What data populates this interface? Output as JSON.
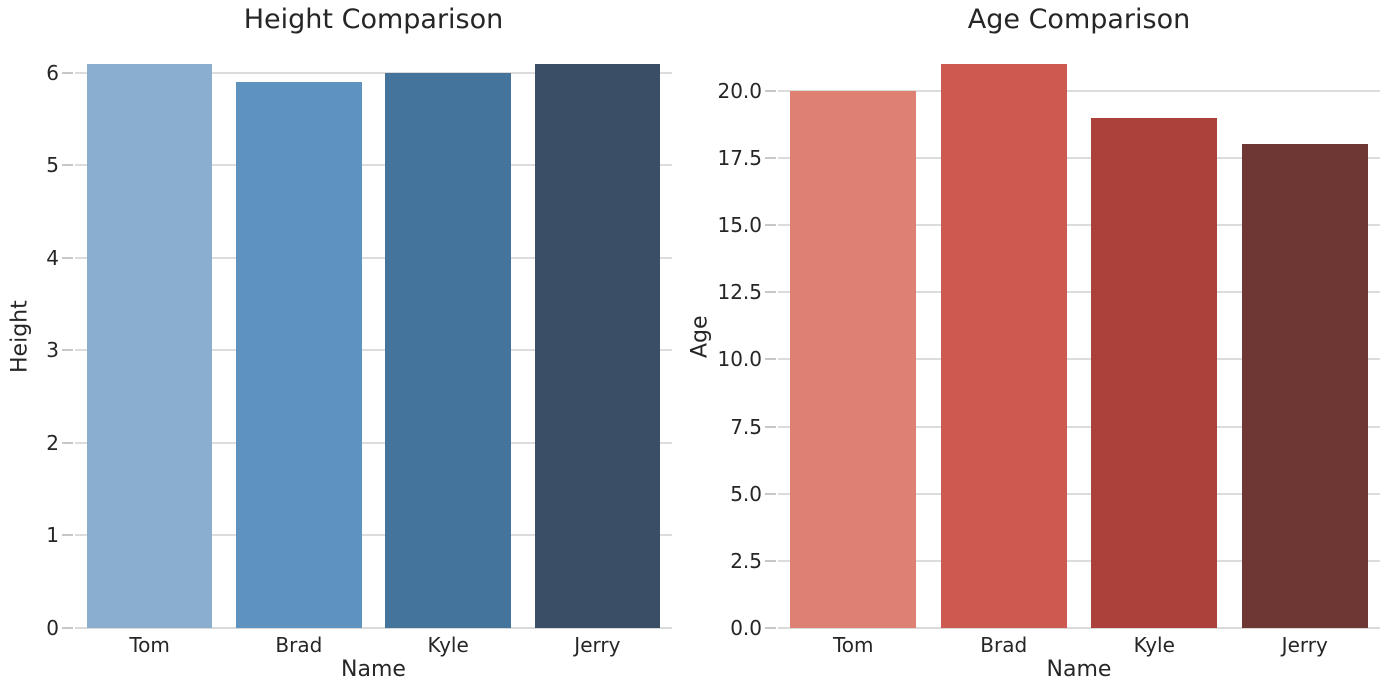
{
  "figure": {
    "background_color": "#ffffff",
    "text_color": "#262626",
    "grid_color": "#dcdcdc",
    "tick_mark_color": "#c8c8c8"
  },
  "chart_data": [
    {
      "type": "bar",
      "title": "Height Comparison",
      "xlabel": "Name",
      "ylabel": "Height",
      "categories": [
        "Tom",
        "Brad",
        "Kyle",
        "Jerry"
      ],
      "values": [
        6.1,
        5.9,
        6.0,
        6.1
      ],
      "bar_colors": [
        "#8aafce",
        "#5d93be",
        "#44739b",
        "#3a4f66"
      ],
      "ylim": [
        0,
        6.3
      ],
      "yticks": [
        0,
        1,
        2,
        3,
        4,
        5,
        6
      ],
      "ytick_labels": [
        "0",
        "1",
        "2",
        "3",
        "4",
        "5",
        "6"
      ],
      "grid": true,
      "legend": null
    },
    {
      "type": "bar",
      "title": "Age Comparison",
      "xlabel": "Name",
      "ylabel": "Age",
      "categories": [
        "Tom",
        "Brad",
        "Kyle",
        "Jerry"
      ],
      "values": [
        20,
        21,
        19,
        18
      ],
      "bar_colors": [
        "#de8172",
        "#cc5a50",
        "#ac413c",
        "#6f3733"
      ],
      "ylim": [
        0,
        21.7
      ],
      "yticks": [
        0,
        2.5,
        5,
        7.5,
        10,
        12.5,
        15,
        17.5,
        20
      ],
      "ytick_labels": [
        "0.0",
        "2.5",
        "5.0",
        "7.5",
        "10.0",
        "12.5",
        "15.0",
        "17.5",
        "20.0"
      ],
      "grid": true,
      "legend": null
    }
  ]
}
